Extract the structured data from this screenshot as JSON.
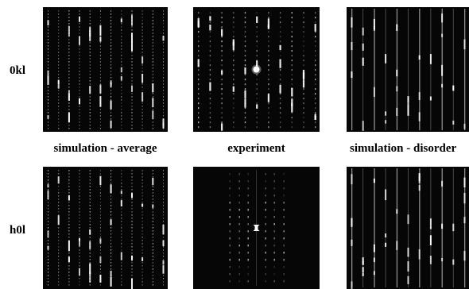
{
  "rows": [
    {
      "label": "0kl"
    },
    {
      "label": "h0l"
    }
  ],
  "columns": [
    {
      "title": "simulation - average"
    },
    {
      "title": "experiment"
    },
    {
      "title": "simulation - disorder"
    }
  ],
  "colors": {
    "panel_background": "#060606",
    "diffraction_spot": "#ffffff"
  }
}
